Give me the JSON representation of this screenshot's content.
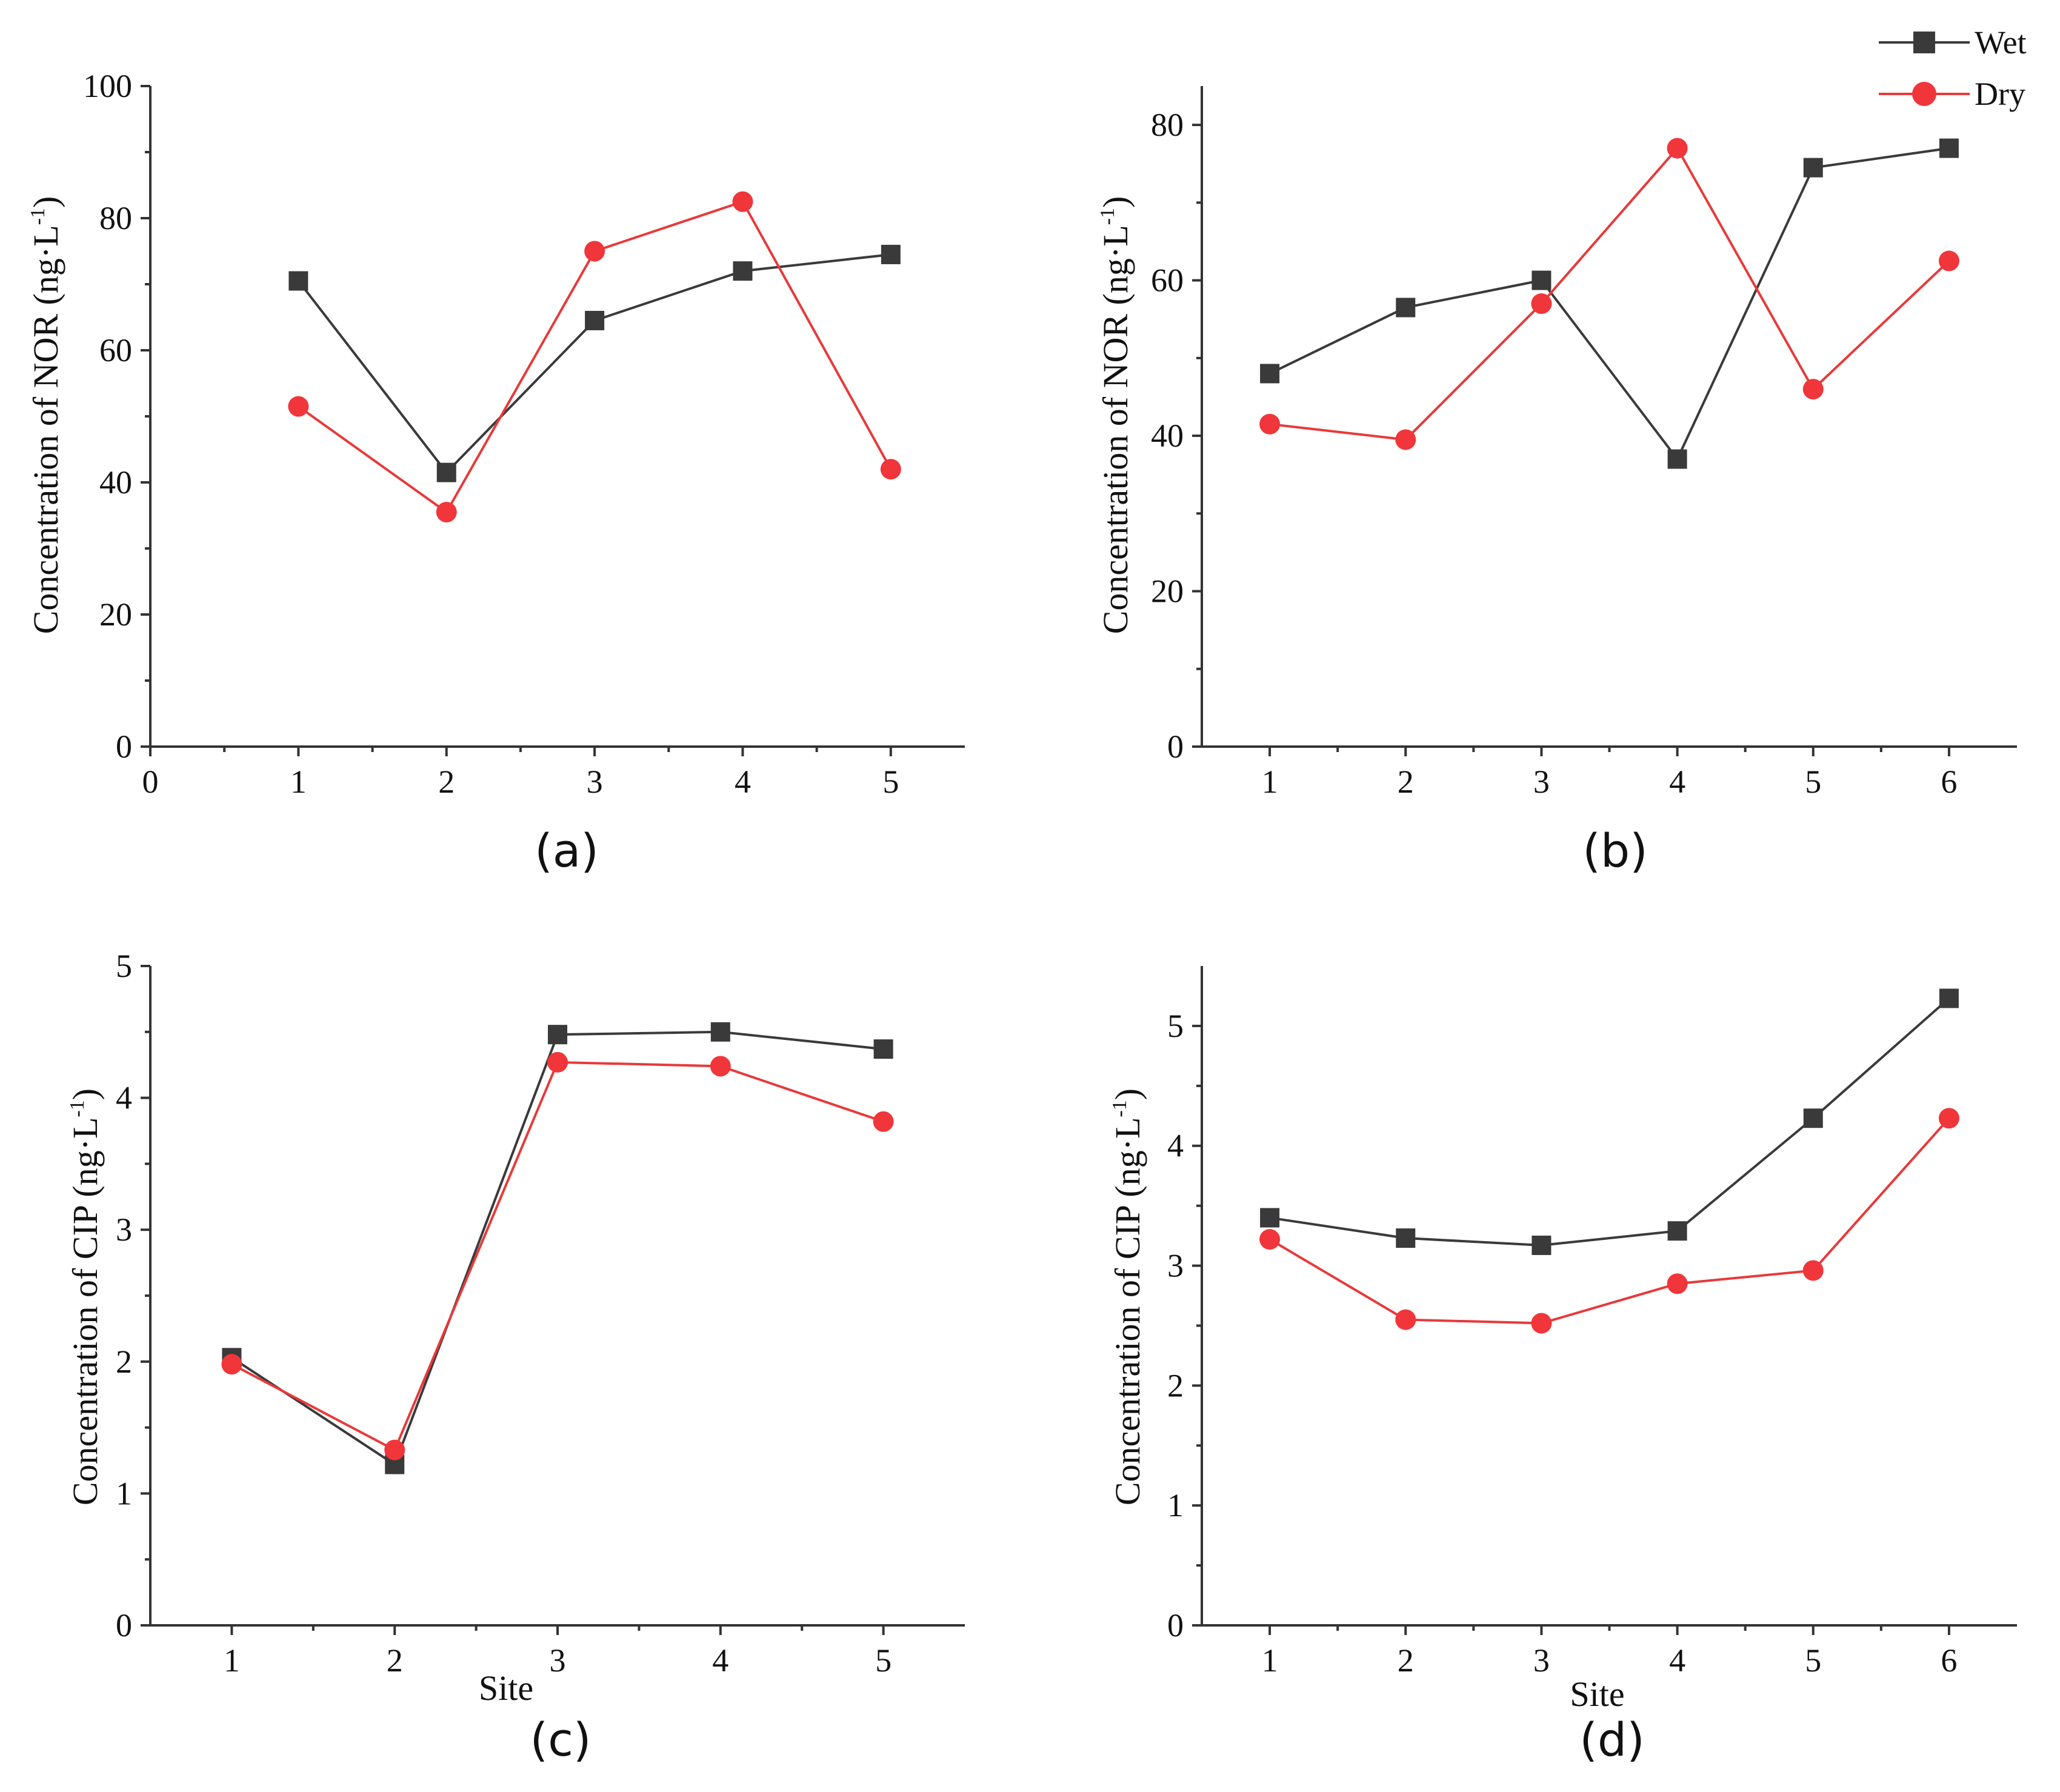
{
  "legend": [
    {
      "name": "Wet",
      "color": "#3a3a3a",
      "marker": "square"
    },
    {
      "name": "Dry",
      "color": "#f0363a",
      "marker": "circle"
    }
  ],
  "chart_data": [
    {
      "type": "line",
      "panel": "(a)",
      "xlabel": "",
      "ylabel": "Concentration of NOR (ng·L",
      "ylabel_sup": "-1",
      "ylabel_close": ")",
      "xlim": [
        0,
        5.5
      ],
      "ylim": [
        0,
        100
      ],
      "xticks": [
        0,
        1,
        2,
        3,
        4,
        5
      ],
      "yticks": [
        0,
        20,
        40,
        60,
        80,
        100
      ],
      "x": [
        1,
        2,
        3,
        4,
        5
      ],
      "series": [
        {
          "name": "Wet",
          "values": [
            70.5,
            41.5,
            64.5,
            72,
            74.5
          ]
        },
        {
          "name": "Dry",
          "values": [
            51.5,
            35.5,
            75,
            82.5,
            42
          ]
        }
      ]
    },
    {
      "type": "line",
      "panel": "(b)",
      "xlabel": "",
      "ylabel": "Concentration of NOR (ng·L",
      "ylabel_sup": "-1",
      "ylabel_close": ")",
      "xlim": [
        0.5,
        6.5
      ],
      "ylim": [
        0,
        85
      ],
      "xticks": [
        1,
        2,
        3,
        4,
        5,
        6
      ],
      "yticks": [
        0,
        20,
        40,
        60,
        80
      ],
      "x": [
        1,
        2,
        3,
        4,
        5,
        6
      ],
      "series": [
        {
          "name": "Wet",
          "values": [
            48,
            56.5,
            60,
            37,
            74.5,
            77
          ]
        },
        {
          "name": "Dry",
          "values": [
            41.5,
            39.5,
            57,
            77,
            46,
            62.5
          ]
        }
      ]
    },
    {
      "type": "line",
      "panel": "(c)",
      "xlabel": "Site",
      "ylabel": "Concentration of CIP (ng·L",
      "ylabel_sup": "-1",
      "ylabel_close": ")",
      "xlim": [
        0.5,
        5.5
      ],
      "ylim": [
        0,
        5
      ],
      "xticks": [
        1,
        2,
        3,
        4,
        5
      ],
      "yticks": [
        0,
        1,
        2,
        3,
        4,
        5
      ],
      "x": [
        1,
        2,
        3,
        4,
        5
      ],
      "series": [
        {
          "name": "Wet",
          "values": [
            2.03,
            1.22,
            4.48,
            4.5,
            4.37
          ]
        },
        {
          "name": "Dry",
          "values": [
            1.98,
            1.33,
            4.27,
            4.24,
            3.82
          ]
        }
      ]
    },
    {
      "type": "line",
      "panel": "(d)",
      "xlabel": "Site",
      "ylabel": "Concentration of CIP (ng·L",
      "ylabel_sup": "-1",
      "ylabel_close": ")",
      "xlim": [
        0.5,
        6.5
      ],
      "ylim": [
        0,
        5.5
      ],
      "xticks": [
        1,
        2,
        3,
        4,
        5,
        6
      ],
      "yticks": [
        0,
        1,
        2,
        3,
        4,
        5
      ],
      "x": [
        1,
        2,
        3,
        4,
        5,
        6
      ],
      "series": [
        {
          "name": "Wet",
          "values": [
            3.4,
            3.23,
            3.17,
            3.29,
            4.23,
            5.23
          ]
        },
        {
          "name": "Dry",
          "values": [
            3.22,
            2.55,
            2.52,
            2.85,
            2.96,
            4.23
          ]
        }
      ]
    }
  ]
}
